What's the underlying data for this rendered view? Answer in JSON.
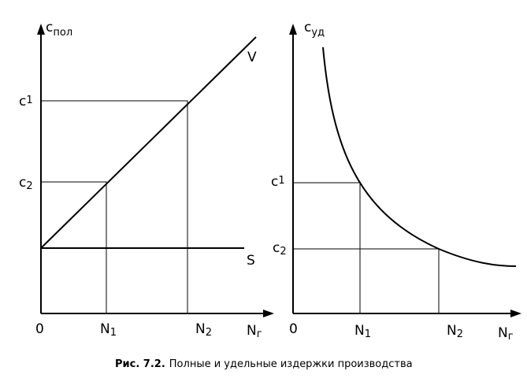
{
  "caption": {
    "number": "Рис. 7.2.",
    "text": "Полные и удельные издержки производства"
  },
  "left": {
    "y_axis": {
      "base": "c",
      "sub": "пол"
    },
    "x_axis": {
      "base": "N",
      "sub": "г"
    },
    "origin": "0",
    "line_v": "V",
    "line_s": "S",
    "y_marks": [
      {
        "base": "c",
        "sub": "1"
      },
      {
        "base": "c",
        "sub": "2"
      }
    ],
    "x_marks": [
      {
        "base": "N",
        "sub": "1"
      },
      {
        "base": "N",
        "sub": "2"
      }
    ]
  },
  "right": {
    "y_axis": {
      "base": "c",
      "sub": "уд"
    },
    "x_axis": {
      "base": "N",
      "sub": "г"
    },
    "origin": "0",
    "y_marks": [
      {
        "base": "c",
        "sub": "1"
      },
      {
        "base": "c",
        "sub": "2"
      }
    ],
    "x_marks": [
      {
        "base": "N",
        "sub": "1"
      },
      {
        "base": "N",
        "sub": "2"
      }
    ]
  }
}
